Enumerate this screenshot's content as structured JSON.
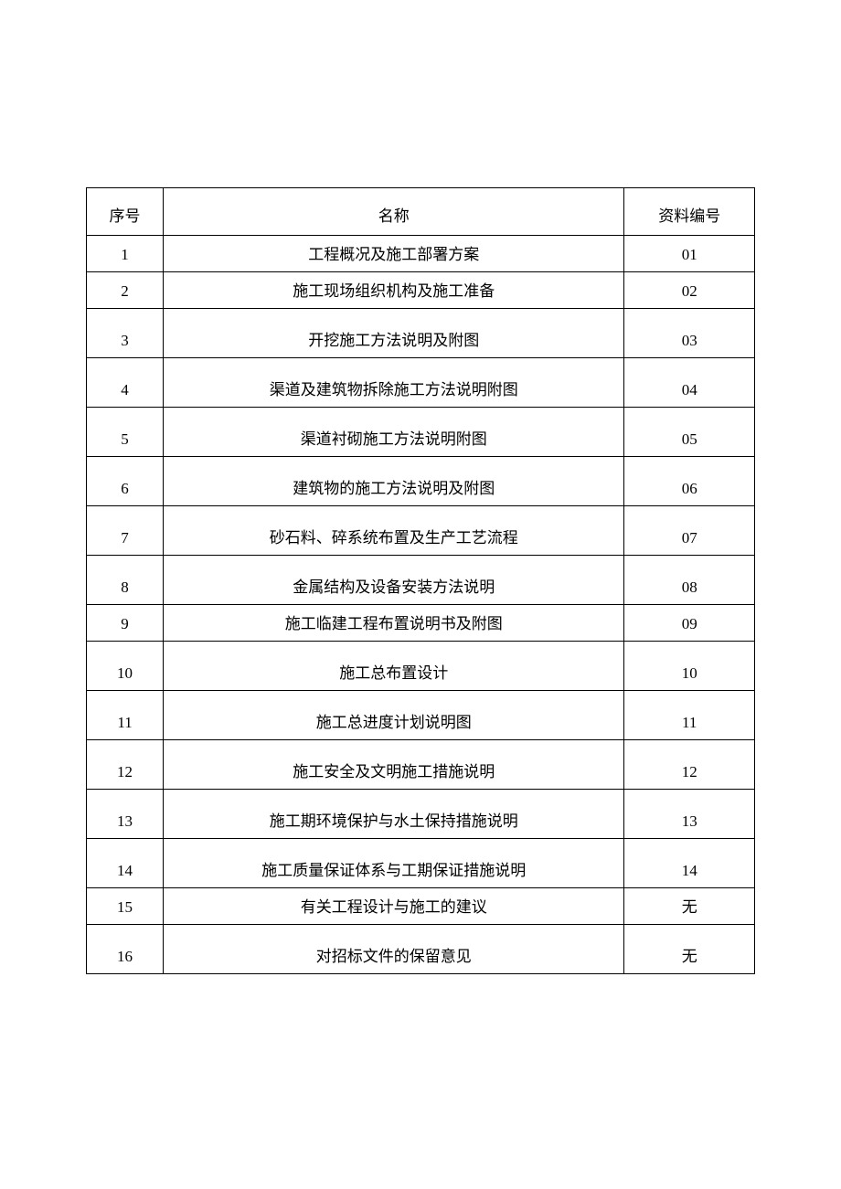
{
  "table": {
    "columns": [
      "序号",
      "名称",
      "资料编号"
    ],
    "column_widths": [
      "11.5%",
      "69%",
      "19.5%"
    ],
    "border_color": "#000000",
    "background_color": "#ffffff",
    "text_color": "#000000",
    "font_family": "SimSun",
    "header_fontsize": 17,
    "cell_fontsize": 17,
    "rows": [
      {
        "seq": "1",
        "name": "工程概况及施工部署方案",
        "code": "01",
        "height": "short"
      },
      {
        "seq": "2",
        "name": "施工现场组织机构及施工准备",
        "code": "02",
        "height": "short"
      },
      {
        "seq": "3",
        "name": "开挖施工方法说明及附图",
        "code": "03",
        "height": "tall"
      },
      {
        "seq": "4",
        "name": "渠道及建筑物拆除施工方法说明附图",
        "code": "04",
        "height": "tall"
      },
      {
        "seq": "5",
        "name": "渠道衬砌施工方法说明附图",
        "code": "05",
        "height": "tall"
      },
      {
        "seq": "6",
        "name": "建筑物的施工方法说明及附图",
        "code": "06",
        "height": "tall"
      },
      {
        "seq": "7",
        "name": "砂石料、碎系统布置及生产工艺流程",
        "code": "07",
        "height": "tall"
      },
      {
        "seq": "8",
        "name": "金属结构及设备安装方法说明",
        "code": "08",
        "height": "tall"
      },
      {
        "seq": "9",
        "name": "施工临建工程布置说明书及附图",
        "code": "09",
        "height": "short"
      },
      {
        "seq": "10",
        "name": "施工总布置设计",
        "code": "10",
        "height": "tall"
      },
      {
        "seq": "11",
        "name": "施工总进度计划说明图",
        "code": "11",
        "height": "tall"
      },
      {
        "seq": "12",
        "name": "施工安全及文明施工措施说明",
        "code": "12",
        "height": "tall"
      },
      {
        "seq": "13",
        "name": "施工期环境保护与水土保持措施说明",
        "code": "13",
        "height": "tall"
      },
      {
        "seq": "14",
        "name": "施工质量保证体系与工期保证措施说明",
        "code": "14",
        "height": "tall"
      },
      {
        "seq": "15",
        "name": "有关工程设计与施工的建议",
        "code": "无",
        "height": "short"
      },
      {
        "seq": "16",
        "name": "对招标文件的保留意见",
        "code": "无",
        "height": "tall"
      }
    ]
  }
}
